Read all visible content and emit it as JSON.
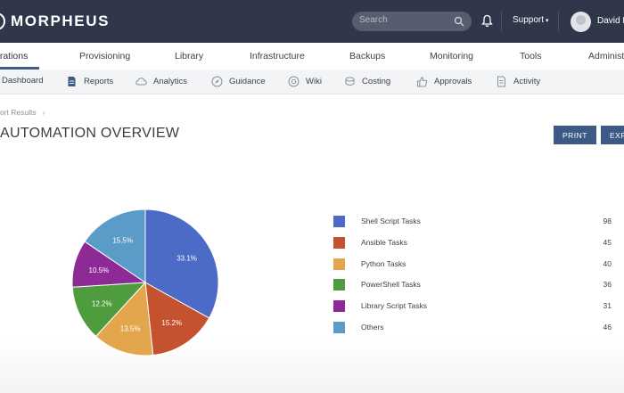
{
  "app": {
    "brand": "MORPHEUS",
    "search_placeholder": "Search",
    "support_label": "Support",
    "user_name": "David E"
  },
  "main_nav": {
    "items": [
      "erations",
      "Provisioning",
      "Library",
      "Infrastructure",
      "Backups",
      "Monitoring",
      "Tools",
      "Administ"
    ],
    "active_index": 0
  },
  "sub_nav": {
    "items": [
      {
        "label": "Dashboard",
        "icon": "dashboard-icon"
      },
      {
        "label": "Reports",
        "icon": "reports-icon"
      },
      {
        "label": "Analytics",
        "icon": "cloud-icon"
      },
      {
        "label": "Guidance",
        "icon": "compass-icon"
      },
      {
        "label": "Wiki",
        "icon": "wiki-icon"
      },
      {
        "label": "Costing",
        "icon": "coins-icon"
      },
      {
        "label": "Approvals",
        "icon": "thumbs-up-icon"
      },
      {
        "label": "Activity",
        "icon": "activity-icon"
      }
    ]
  },
  "breadcrumb": "ort Results",
  "page": {
    "title": "AUTOMATION OVERVIEW",
    "print_label": "PRINT",
    "export_label": "EXP"
  },
  "chart_data": {
    "type": "pie",
    "title": "",
    "series": [
      {
        "name": "Shell Script Tasks",
        "value": 98,
        "percent_label": "33.1%",
        "color": "#4c6bc7"
      },
      {
        "name": "Ansible Tasks",
        "value": 45,
        "percent_label": "15.2%",
        "color": "#c4522e"
      },
      {
        "name": "Python Tasks",
        "value": 40,
        "percent_label": "13.5%",
        "color": "#e3a64d"
      },
      {
        "name": "PowerShell Tasks",
        "value": 36,
        "percent_label": "12.2%",
        "color": "#4f9c3e"
      },
      {
        "name": "Library Script Tasks",
        "value": 31,
        "percent_label": "10.5%",
        "color": "#8d2a96"
      },
      {
        "name": "Others",
        "value": 46,
        "percent_label": "15.5%",
        "color": "#5a9bc8"
      }
    ]
  }
}
